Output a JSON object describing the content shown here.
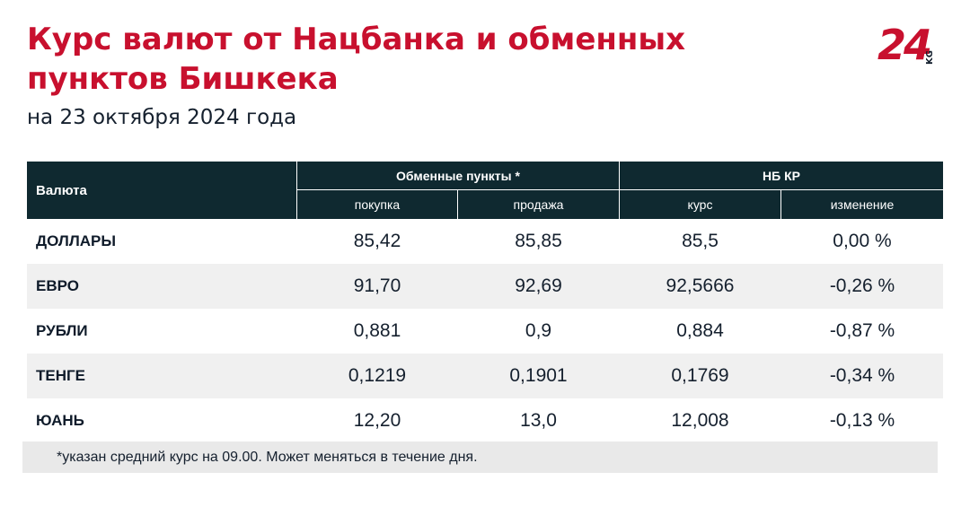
{
  "header": {
    "title": "Курс валют от Нацбанка и обменных пунктов Бишкека",
    "subtitle": "на 23 октября 2024 года",
    "logo_text": "24",
    "logo_suffix": "KG"
  },
  "table": {
    "col_currency": "Валюта",
    "group_exchange": "Обменные пункты *",
    "group_nb": "НБ КР",
    "col_buy": "покупка",
    "col_sell": "продажа",
    "col_rate": "курс",
    "col_change": "изменение",
    "rows": [
      {
        "name": "ДОЛЛАРЫ",
        "buy": "85,42",
        "sell": "85,85",
        "rate": "85,5",
        "change": "0,00 %"
      },
      {
        "name": "ЕВРО",
        "buy": "91,70",
        "sell": "92,69",
        "rate": "92,5666",
        "change": "-0,26 %"
      },
      {
        "name": "РУБЛИ",
        "buy": "0,881",
        "sell": "0,9",
        "rate": "0,884",
        "change": "-0,87 %"
      },
      {
        "name": "ТЕНГЕ",
        "buy": "0,1219",
        "sell": "0,1901",
        "rate": "0,1769",
        "change": "-0,34 %"
      },
      {
        "name": "ЮАНЬ",
        "buy": "12,20",
        "sell": "13,0",
        "rate": "12,008",
        "change": "-0,13 %"
      }
    ]
  },
  "footnote": "*указан средний курс на 09.00. Может меняться в течение дня.",
  "colors": {
    "accent": "#c8102e",
    "header_bg": "#0f2930",
    "row_alt": "#f0f0f0"
  }
}
